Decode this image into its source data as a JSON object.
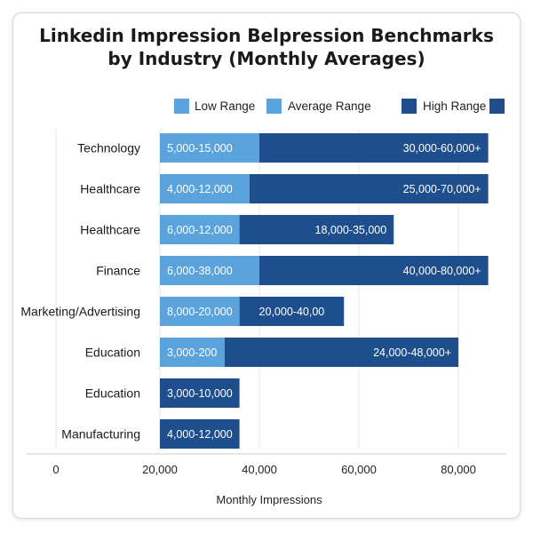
{
  "chart_data": {
    "type": "bar",
    "orientation": "horizontal",
    "stacked": true,
    "title_line1": "Linkedin Impression Belpression Benchmarks",
    "title_line2": "by Industry (Monthly Averages)",
    "xlabel": "Monthly Impressions",
    "ylabel": "",
    "x_ticks": [
      {
        "value": 0,
        "label": "0"
      },
      {
        "value": 20000,
        "label": "20,000"
      },
      {
        "value": 40000,
        "label": "40,000"
      },
      {
        "value": 60000,
        "label": "60,000"
      },
      {
        "value": 80000,
        "label": "80,000"
      }
    ],
    "x_tick_positions": [
      0,
      20000,
      40000,
      60000,
      80000
    ],
    "grid": "vertical",
    "legend": {
      "position": "top-right",
      "entries": [
        {
          "label": "Low Range",
          "color": "#5ba3dc"
        },
        {
          "label": "Average Range",
          "color": "#5ba3dc"
        },
        {
          "label": "High Range",
          "color": "#1e4e8c"
        }
      ],
      "trailing_swatch_color": "#1e4e8c"
    },
    "colors": {
      "light": "#5ba3dc",
      "dark": "#1e4e8c"
    },
    "categories": [
      "Technology",
      "Healthcare",
      "Healthcare",
      "Finance",
      "Marketing/Advertising",
      "Education",
      "Education",
      "Manufacturing"
    ],
    "rows": [
      {
        "category": "Technology",
        "segments": [
          {
            "series": "light",
            "end": 40000,
            "label": "5,000-15,000"
          },
          {
            "series": "dark",
            "end": 86000,
            "label": "30,000-60,000+"
          }
        ]
      },
      {
        "category": "Healthcare",
        "segments": [
          {
            "series": "light",
            "end": 38000,
            "label": "4,000-12,000"
          },
          {
            "series": "dark",
            "end": 86000,
            "label": "25,000-70,000+"
          }
        ]
      },
      {
        "category": "Healthcare",
        "segments": [
          {
            "series": "light",
            "end": 36000,
            "label": "6,000-12,000"
          },
          {
            "series": "dark",
            "end": 67000,
            "label": "18,000-35,000"
          }
        ]
      },
      {
        "category": "Finance",
        "segments": [
          {
            "series": "light",
            "end": 40000,
            "label": "6,000-38,000"
          },
          {
            "series": "dark",
            "end": 86000,
            "label": "40,000-80,000+"
          }
        ]
      },
      {
        "category": "Marketing/Advertising",
        "segments": [
          {
            "series": "light",
            "end": 36000,
            "label": "8,000-20,000"
          },
          {
            "series": "dark",
            "end": 57000,
            "label": "20,000-40,00"
          }
        ]
      },
      {
        "category": "Education",
        "segments": [
          {
            "series": "light",
            "end": 33000,
            "label": "3,000-200"
          },
          {
            "series": "dark",
            "end": 80000,
            "label": "24,000-48,000+"
          }
        ]
      },
      {
        "category": "Education",
        "segments": [
          {
            "series": "dark",
            "end": 36000,
            "label": "3,000-10,000"
          }
        ]
      },
      {
        "category": "Manufacturing",
        "segments": [
          {
            "series": "dark",
            "end": 36000,
            "label": "4,000-12,000"
          }
        ]
      }
    ]
  }
}
